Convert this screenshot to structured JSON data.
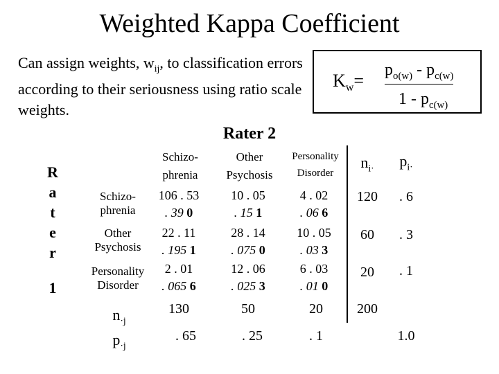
{
  "title": "Weighted Kappa Coefficient",
  "intro": {
    "t1": "Can assign weights, w",
    "sub": "ij",
    "t2": ", to classification errors according to their seriousness using ratio scale weights."
  },
  "formula": {
    "lhs": "K",
    "lhs_sub": "w",
    "eq": "=",
    "num_a": "p",
    "num_a_sub": "o(w)",
    "num_op": " - p",
    "num_b_sub": "c(w)",
    "den_a": "1 - p",
    "den_sub": "c(w)"
  },
  "rater2": "Rater 2",
  "rater1_letters": [
    "R",
    "a",
    "t",
    "e",
    "r"
  ],
  "rater1_num": "1",
  "columns": [
    {
      "l1": "Schizo-",
      "l2": "phrenia"
    },
    {
      "l1": "Other",
      "l2": "Psychosis"
    },
    {
      "l1": "Personality",
      "l2": "Disorder"
    }
  ],
  "ni_label": "n",
  "ni_sub": "i·",
  "pi_label": "p",
  "pi_sub": "i·",
  "rows": [
    {
      "l1": "Schizo-",
      "l2": "phrenia",
      "cells": [
        {
          "n": "106",
          "p": ". 53",
          "e": ". 39",
          "w": "0"
        },
        {
          "n": "10",
          "p": ". 05",
          "e": ". 15",
          "w": "1"
        },
        {
          "n": "4",
          "p": ". 02",
          "e": ". 06",
          "w": "6"
        }
      ],
      "ni": "120",
      "pi": ". 6"
    },
    {
      "l1": "Other",
      "l2": "Psychosis",
      "cells": [
        {
          "n": "22",
          "p": ". 11",
          "e": ". 195",
          "w": "1"
        },
        {
          "n": "28",
          "p": ". 14",
          "e": ". 075",
          "w": "0"
        },
        {
          "n": "10",
          "p": ". 05",
          "e": ". 03",
          "w": "3"
        }
      ],
      "ni": "60",
      "pi": ". 3"
    },
    {
      "l1": "Personality",
      "l2": "Disorder",
      "cells": [
        {
          "n": "2",
          "p": ". 01",
          "e": ". 065",
          "w": "6"
        },
        {
          "n": "12",
          "p": ". 06",
          "e": ". 025",
          "w": "3"
        },
        {
          "n": "6",
          "p": ". 03",
          "e": ". 01",
          "w": "0"
        }
      ],
      "ni": "20",
      "pi": ". 1"
    }
  ],
  "nj_label": "n",
  "nj_sub": "·j",
  "nj": [
    "130",
    "50",
    "20"
  ],
  "total": "200",
  "pj_label": "p",
  "pj_sub": "·j",
  "pj": [
    ". 65",
    ". 25",
    ". 1"
  ],
  "pj_total": "1.0"
}
